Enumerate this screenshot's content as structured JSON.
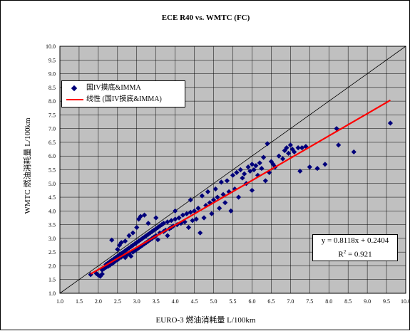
{
  "chart_data": {
    "type": "scatter",
    "title": "ECE R40 vs. WMTC (FC)",
    "xlabel": "EURO-3 燃油消耗量 L/100km",
    "ylabel": "WMTC 燃油消耗量 L/100km",
    "xlim": [
      1.0,
      10.0
    ],
    "ylim": [
      1.0,
      10.0
    ],
    "xticks": [
      "1.0",
      "1.5",
      "2.0",
      "2.5",
      "3.0",
      "3.5",
      "4.0",
      "4.5",
      "5.0",
      "5.5",
      "6.0",
      "6.5",
      "7.0",
      "7.5",
      "8.0",
      "8.5",
      "9.0",
      "9.5",
      "10.0"
    ],
    "yticks": [
      "1.0",
      "1.5",
      "2.0",
      "2.5",
      "3.0",
      "3.5",
      "4.0",
      "4.5",
      "5.0",
      "5.5",
      "6.0",
      "6.5",
      "7.0",
      "7.5",
      "8.0",
      "8.5",
      "9.0",
      "9.5",
      "10.0"
    ],
    "grid": true,
    "legend_position": "top-left",
    "reference_line": {
      "slope": 1,
      "intercept": 0,
      "color": "#000000"
    },
    "series": [
      {
        "name": "国IV摸底&IMMA",
        "marker": "diamond",
        "color": "#00007a",
        "points": [
          [
            1.8,
            1.68
          ],
          [
            1.95,
            1.72
          ],
          [
            2.0,
            1.66
          ],
          [
            2.05,
            1.62
          ],
          [
            2.1,
            1.7
          ],
          [
            2.1,
            1.85
          ],
          [
            2.15,
            1.9
          ],
          [
            2.2,
            1.95
          ],
          [
            2.2,
            2.05
          ],
          [
            2.25,
            2.1
          ],
          [
            2.25,
            1.98
          ],
          [
            2.3,
            2.15
          ],
          [
            2.3,
            2.02
          ],
          [
            2.35,
            2.2
          ],
          [
            2.35,
            2.08
          ],
          [
            2.35,
            2.94
          ],
          [
            2.4,
            2.25
          ],
          [
            2.4,
            2.12
          ],
          [
            2.45,
            2.3
          ],
          [
            2.45,
            2.18
          ],
          [
            2.5,
            2.35
          ],
          [
            2.5,
            2.22
          ],
          [
            2.5,
            2.6
          ],
          [
            2.55,
            2.4
          ],
          [
            2.55,
            2.28
          ],
          [
            2.55,
            2.75
          ],
          [
            2.6,
            2.45
          ],
          [
            2.6,
            2.32
          ],
          [
            2.6,
            2.85
          ],
          [
            2.65,
            2.5
          ],
          [
            2.65,
            2.38
          ],
          [
            2.7,
            2.55
          ],
          [
            2.7,
            2.3
          ],
          [
            2.7,
            2.9
          ],
          [
            2.75,
            2.6
          ],
          [
            2.75,
            2.4
          ],
          [
            2.8,
            2.65
          ],
          [
            2.8,
            2.45
          ],
          [
            2.8,
            3.1
          ],
          [
            2.85,
            2.7
          ],
          [
            2.85,
            2.35
          ],
          [
            2.9,
            2.75
          ],
          [
            2.9,
            2.5
          ],
          [
            2.9,
            3.2
          ],
          [
            2.95,
            2.8
          ],
          [
            2.95,
            2.55
          ],
          [
            3.0,
            2.85
          ],
          [
            3.0,
            2.6
          ],
          [
            3.0,
            3.4
          ],
          [
            3.05,
            2.9
          ],
          [
            3.05,
            2.65
          ],
          [
            3.05,
            3.7
          ],
          [
            3.1,
            2.95
          ],
          [
            3.1,
            2.7
          ],
          [
            3.1,
            3.8
          ],
          [
            3.15,
            3.0
          ],
          [
            3.15,
            2.75
          ],
          [
            3.2,
            3.05
          ],
          [
            3.2,
            2.8
          ],
          [
            3.2,
            3.85
          ],
          [
            3.25,
            3.1
          ],
          [
            3.25,
            2.85
          ],
          [
            3.3,
            3.15
          ],
          [
            3.3,
            2.9
          ],
          [
            3.3,
            3.55
          ],
          [
            3.35,
            3.2
          ],
          [
            3.35,
            2.95
          ],
          [
            3.4,
            3.25
          ],
          [
            3.4,
            3.0
          ],
          [
            3.45,
            3.3
          ],
          [
            3.45,
            3.05
          ],
          [
            3.5,
            3.35
          ],
          [
            3.5,
            3.1
          ],
          [
            3.5,
            3.75
          ],
          [
            3.55,
            3.4
          ],
          [
            3.55,
            2.95
          ],
          [
            3.6,
            3.45
          ],
          [
            3.6,
            3.2
          ],
          [
            3.65,
            3.5
          ],
          [
            3.7,
            3.55
          ],
          [
            3.7,
            3.25
          ],
          [
            3.75,
            3.3
          ],
          [
            3.8,
            3.6
          ],
          [
            3.8,
            3.1
          ],
          [
            3.85,
            3.35
          ],
          [
            3.9,
            3.65
          ],
          [
            3.9,
            3.4
          ],
          [
            3.95,
            3.45
          ],
          [
            4.0,
            3.7
          ],
          [
            4.0,
            4.0
          ],
          [
            4.05,
            3.5
          ],
          [
            4.1,
            3.75
          ],
          [
            4.15,
            3.55
          ],
          [
            4.2,
            3.85
          ],
          [
            4.25,
            3.6
          ],
          [
            4.3,
            3.9
          ],
          [
            4.35,
            3.4
          ],
          [
            4.4,
            3.95
          ],
          [
            4.4,
            4.4
          ],
          [
            4.45,
            3.65
          ],
          [
            4.5,
            4.0
          ],
          [
            4.55,
            3.7
          ],
          [
            4.6,
            4.1
          ],
          [
            4.65,
            3.2
          ],
          [
            4.7,
            4.55
          ],
          [
            4.75,
            3.75
          ],
          [
            4.8,
            4.2
          ],
          [
            4.85,
            4.7
          ],
          [
            4.9,
            4.3
          ],
          [
            4.95,
            3.9
          ],
          [
            5.0,
            4.4
          ],
          [
            5.05,
            4.8
          ],
          [
            5.1,
            4.5
          ],
          [
            5.15,
            4.1
          ],
          [
            5.2,
            5.05
          ],
          [
            5.25,
            4.6
          ],
          [
            5.3,
            4.3
          ],
          [
            5.35,
            5.1
          ],
          [
            5.4,
            4.7
          ],
          [
            5.45,
            4.0
          ],
          [
            5.5,
            5.3
          ],
          [
            5.55,
            4.8
          ],
          [
            5.6,
            5.4
          ],
          [
            5.65,
            4.5
          ],
          [
            5.7,
            5.5
          ],
          [
            5.75,
            5.2
          ],
          [
            5.8,
            5.35
          ],
          [
            5.85,
            5.0
          ],
          [
            5.9,
            5.6
          ],
          [
            5.95,
            5.45
          ],
          [
            6.0,
            5.7
          ],
          [
            6.0,
            4.75
          ],
          [
            6.05,
            5.5
          ],
          [
            6.1,
            5.65
          ],
          [
            6.15,
            5.3
          ],
          [
            6.2,
            5.75
          ],
          [
            6.25,
            5.55
          ],
          [
            6.3,
            5.95
          ],
          [
            6.35,
            5.1
          ],
          [
            6.4,
            6.45
          ],
          [
            6.45,
            5.4
          ],
          [
            6.5,
            5.8
          ],
          [
            6.55,
            5.7
          ],
          [
            6.6,
            5.6
          ],
          [
            6.7,
            6.0
          ],
          [
            6.8,
            5.9
          ],
          [
            6.85,
            6.2
          ],
          [
            6.9,
            6.3
          ],
          [
            6.95,
            6.1
          ],
          [
            7.0,
            6.4
          ],
          [
            7.05,
            6.25
          ],
          [
            7.1,
            6.15
          ],
          [
            7.2,
            6.3
          ],
          [
            7.25,
            5.45
          ],
          [
            7.3,
            6.3
          ],
          [
            7.4,
            6.35
          ],
          [
            7.5,
            5.6
          ],
          [
            7.7,
            5.55
          ],
          [
            7.9,
            5.7
          ],
          [
            8.2,
            7.0
          ],
          [
            8.25,
            6.4
          ],
          [
            8.65,
            6.15
          ],
          [
            9.6,
            7.2
          ]
        ]
      },
      {
        "name": "线性 (国IV摸底&IMMA)",
        "type": "line",
        "color": "#ff0000",
        "slope": 0.8118,
        "intercept": 0.2404,
        "x_range": [
          1.8,
          9.6
        ]
      }
    ],
    "annotation": {
      "equation": "y = 0.8118x + 0.2404",
      "r2_label": "R",
      "r2_sup": "2",
      "r2_value": " = 0.921"
    }
  }
}
